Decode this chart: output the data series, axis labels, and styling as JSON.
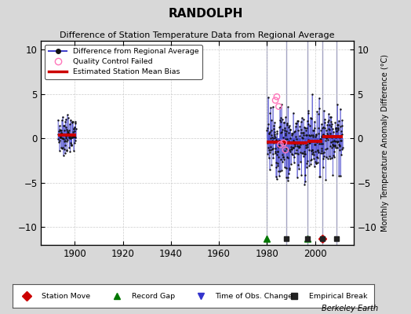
{
  "title": "RANDOLPH",
  "subtitle": "Difference of Station Temperature Data from Regional Average",
  "ylabel": "Monthly Temperature Anomaly Difference (°C)",
  "xlabel_credit": "Berkeley Earth",
  "xlim": [
    1886,
    2016
  ],
  "ylim": [
    -12,
    11
  ],
  "yticks": [
    -10,
    -5,
    0,
    5,
    10
  ],
  "xticks": [
    1900,
    1920,
    1940,
    1960,
    1980,
    2000
  ],
  "bg_color": "#d8d8d8",
  "plot_bg_color": "#ffffff",
  "vertical_lines_gray": [
    1980,
    1988,
    1997,
    2003,
    2009
  ],
  "vertical_line_color": "#9999bb",
  "data_color": "#4444cc",
  "dot_color": "#111111",
  "bias_color": "#cc0000",
  "qc_color": "#ff77bb",
  "marker_y": -11.3,
  "station_moves": [
    2003
  ],
  "record_gaps": [
    1980,
    1997
  ],
  "empirical_breaks": [
    1988,
    1997,
    2003,
    2009
  ],
  "random_seed": 7,
  "seg1_start": 1893.0,
  "seg1_end": 1900.5,
  "seg1_mean": 0.4,
  "seg1_std": 1.0,
  "seg1_bias": 0.35,
  "seg2_start": 1980.0,
  "seg2_end": 1988.0,
  "seg2_mean": -0.3,
  "seg2_std": 2.2,
  "seg2_bias": -0.4,
  "seg3_start": 1988.0,
  "seg3_end": 1997.0,
  "seg3_mean": -0.6,
  "seg3_std": 2.0,
  "seg3_bias": -0.5,
  "seg4_start": 1997.0,
  "seg4_end": 2003.0,
  "seg4_mean": -0.2,
  "seg4_std": 1.8,
  "seg4_bias": -0.3,
  "seg5_start": 2003.0,
  "seg5_end": 2011.5,
  "seg5_mean": 0.3,
  "seg5_std": 1.6,
  "seg5_bias": 0.2,
  "qc_x": [
    1983.5,
    1984.1,
    1984.9,
    1985.6,
    1987.0,
    1987.7
  ],
  "qc_y": [
    4.3,
    4.7,
    3.6,
    -0.7,
    -0.5,
    -1.3
  ]
}
